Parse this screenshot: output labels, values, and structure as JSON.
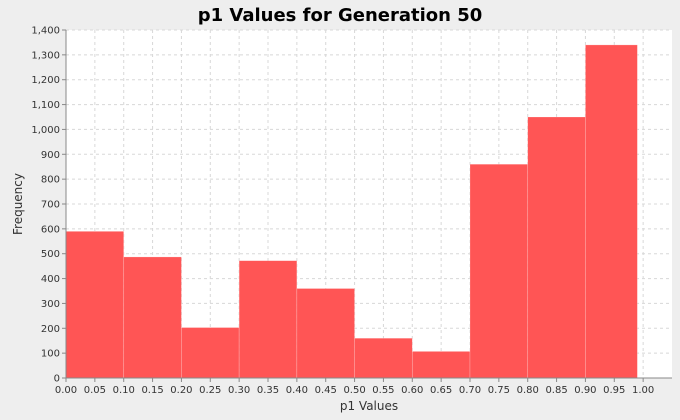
{
  "chart_data": {
    "type": "bar",
    "title": "p1 Values for Generation 50",
    "xlabel": "p1 Values",
    "ylabel": "Frequency",
    "xlim": [
      0.0,
      1.0
    ],
    "ylim": [
      0,
      1400
    ],
    "x_ticks": [
      "0.00",
      "0.05",
      "0.10",
      "0.15",
      "0.20",
      "0.25",
      "0.30",
      "0.35",
      "0.40",
      "0.45",
      "0.50",
      "0.55",
      "0.60",
      "0.65",
      "0.70",
      "0.75",
      "0.80",
      "0.85",
      "0.90",
      "0.95",
      "1.00"
    ],
    "y_ticks": [
      "0",
      "100",
      "200",
      "300",
      "400",
      "500",
      "600",
      "700",
      "800",
      "900",
      "1,000",
      "1,100",
      "1,200",
      "1,300",
      "1,400"
    ],
    "bins": [
      {
        "start": 0.0,
        "end": 0.1,
        "value": 590
      },
      {
        "start": 0.1,
        "end": 0.2,
        "value": 487
      },
      {
        "start": 0.2,
        "end": 0.3,
        "value": 203
      },
      {
        "start": 0.3,
        "end": 0.4,
        "value": 472
      },
      {
        "start": 0.4,
        "end": 0.5,
        "value": 360
      },
      {
        "start": 0.5,
        "end": 0.6,
        "value": 160
      },
      {
        "start": 0.6,
        "end": 0.7,
        "value": 107
      },
      {
        "start": 0.7,
        "end": 0.8,
        "value": 860
      },
      {
        "start": 0.8,
        "end": 0.9,
        "value": 1050
      },
      {
        "start": 0.9,
        "end": 0.99,
        "value": 1340
      }
    ],
    "grid": true,
    "colors": {
      "bar": "#ff5555",
      "background": "#ffffff",
      "page": "#eeeeee",
      "grid": "#d8d8d8",
      "axis": "#888888"
    }
  }
}
